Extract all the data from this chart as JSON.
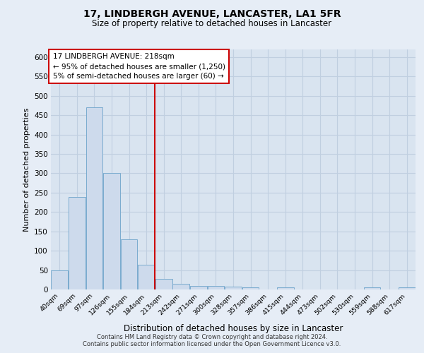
{
  "title": "17, LINDBERGH AVENUE, LANCASTER, LA1 5FR",
  "subtitle": "Size of property relative to detached houses in Lancaster",
  "xlabel": "Distribution of detached houses by size in Lancaster",
  "ylabel": "Number of detached properties",
  "footer_line1": "Contains HM Land Registry data © Crown copyright and database right 2024.",
  "footer_line2": "Contains public sector information licensed under the Open Government Licence v3.0.",
  "bin_labels": [
    "40sqm",
    "69sqm",
    "97sqm",
    "126sqm",
    "155sqm",
    "184sqm",
    "213sqm",
    "242sqm",
    "271sqm",
    "300sqm",
    "328sqm",
    "357sqm",
    "386sqm",
    "415sqm",
    "444sqm",
    "473sqm",
    "502sqm",
    "530sqm",
    "559sqm",
    "588sqm",
    "617sqm"
  ],
  "bar_values": [
    50,
    238,
    470,
    300,
    130,
    63,
    28,
    15,
    10,
    10,
    8,
    5,
    0,
    5,
    0,
    0,
    0,
    0,
    5,
    0,
    5
  ],
  "bar_color": "#cddaec",
  "bar_edge_color": "#7aabcf",
  "ylim": [
    0,
    620
  ],
  "yticks": [
    0,
    50,
    100,
    150,
    200,
    250,
    300,
    350,
    400,
    450,
    500,
    550,
    600
  ],
  "vline_bin_index": 6,
  "vline_color": "#cc0000",
  "annotation_title": "17 LINDBERGH AVENUE: 218sqm",
  "annotation_line1": "← 95% of detached houses are smaller (1,250)",
  "annotation_line2": "5% of semi-detached houses are larger (60) →",
  "annotation_box_color": "#cc0000",
  "background_color": "#e6edf6",
  "plot_bg_color": "#d9e4f0",
  "grid_color": "#c0cfe0"
}
